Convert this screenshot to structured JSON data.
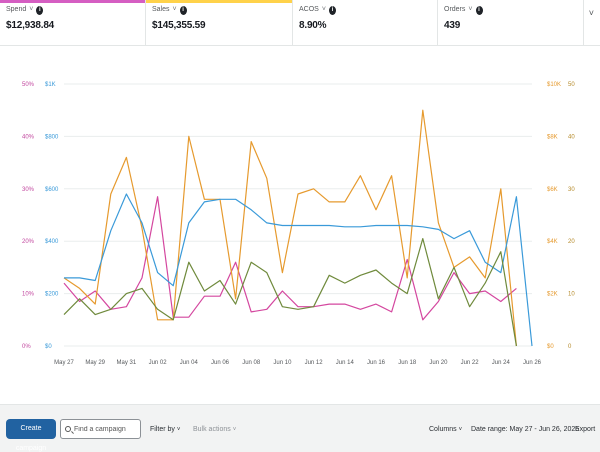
{
  "metrics": [
    {
      "label": "Spend",
      "value": "$12,938.84",
      "color": "#d55ec2"
    },
    {
      "label": "Sales",
      "value": "$145,355.59",
      "color": "#ffd24a"
    },
    {
      "label": "ACOS",
      "value": "8.90%",
      "color": "#ffffff"
    },
    {
      "label": "Orders",
      "value": "439",
      "color": "#ffffff"
    }
  ],
  "panel_chevron": "˅",
  "chart_data": {
    "type": "line",
    "x": [
      "May 27",
      "May 28",
      "May 29",
      "May 30",
      "May 31",
      "Jun 01",
      "Jun 02",
      "Jun 03",
      "Jun 04",
      "Jun 05",
      "Jun 06",
      "Jun 07",
      "Jun 08",
      "Jun 09",
      "Jun 10",
      "Jun 11",
      "Jun 12",
      "Jun 13",
      "Jun 14",
      "Jun 15",
      "Jun 16",
      "Jun 17",
      "Jun 18",
      "Jun 19",
      "Jun 20",
      "Jun 21",
      "Jun 22",
      "Jun 23",
      "Jun 24",
      "Jun 25",
      "Jun 26"
    ],
    "x_tick_labels": [
      "May 27",
      "May 29",
      "May 31",
      "Jun 02",
      "Jun 04",
      "Jun 06",
      "Jun 08",
      "Jun 10",
      "Jun 12",
      "Jun 14",
      "Jun 16",
      "Jun 18",
      "Jun 20",
      "Jun 22",
      "Jun 24",
      "Jun 26"
    ],
    "y_left_pct_ticks": [
      "0%",
      "10%",
      "20%",
      "30%",
      "40%",
      "50%"
    ],
    "y_left_dollar_ticks": [
      "$0",
      "$200",
      "$400",
      "$600",
      "$800",
      "$1K"
    ],
    "y_right_dollar_ticks": [
      "$0",
      "$2K",
      "$4K",
      "$6K",
      "$8K",
      "$10K"
    ],
    "y_right_count_ticks": [
      "0",
      "10",
      "20",
      "30",
      "40",
      "50"
    ],
    "series": [
      {
        "color": "#d4479f",
        "axis": "pct",
        "values": [
          12,
          8.5,
          10.5,
          7,
          7.5,
          13,
          28.5,
          5.5,
          5.5,
          9.5,
          9.5,
          16,
          6.5,
          7,
          10.5,
          7.5,
          7.5,
          8,
          8,
          7,
          8,
          6.5,
          16.5,
          5,
          8.5,
          14,
          10,
          10.5,
          8.5,
          11,
          null
        ]
      },
      {
        "color": "#e69a2e",
        "axis": "sales",
        "values": [
          2.6,
          2.2,
          1.6,
          5.8,
          7.2,
          4.5,
          1,
          1,
          8,
          5.6,
          5.6,
          1.8,
          7.8,
          6.4,
          2.8,
          5.8,
          6,
          5.5,
          5.5,
          6.5,
          5.2,
          6.5,
          2.6,
          9,
          4.7,
          3,
          3.4,
          2.6,
          6,
          0,
          null
        ]
      },
      {
        "color": "#3a9ad9",
        "axis": "dollar",
        "values": [
          260,
          260,
          250,
          440,
          580,
          470,
          280,
          230,
          470,
          550,
          560,
          560,
          520,
          470,
          460,
          460,
          460,
          460,
          455,
          455,
          460,
          460,
          460,
          455,
          445,
          410,
          440,
          320,
          280,
          570,
          0
        ]
      },
      {
        "color": "#6f8a3c",
        "axis": "count",
        "values": [
          6,
          9,
          6,
          7,
          10,
          11,
          7,
          5,
          16,
          10.5,
          12.5,
          8,
          16,
          14,
          7.5,
          7,
          7.5,
          13.5,
          12,
          13.5,
          14.5,
          12,
          10,
          20.5,
          9,
          15,
          7.5,
          12,
          18,
          0,
          null
        ]
      }
    ]
  },
  "toolbar": {
    "create_label": "Create campaign",
    "find_placeholder": "Find a campaign",
    "filter_label": "Filter by",
    "bulk_label": "Bulk actions",
    "columns_label": "Columns",
    "date_range_label": "Date range: May 27 - Jun 26, 2025",
    "export_label": "Export",
    "chevron": "˅"
  }
}
